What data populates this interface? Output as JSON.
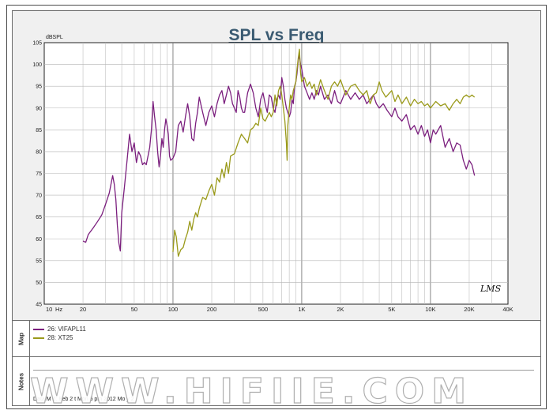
{
  "chart_data": {
    "type": "line",
    "title": "SPL vs Freq",
    "ylabel": "dBSPL",
    "xunit": "Hz",
    "xscale": "log",
    "xlim": [
      10,
      40000
    ],
    "ylim": [
      45,
      105
    ],
    "grid": true,
    "legend_position": "map panel below chart",
    "x_ticks": [
      {
        "value": 10,
        "label": "10"
      },
      {
        "value": 20,
        "label": "20"
      },
      {
        "value": 50,
        "label": "50"
      },
      {
        "value": 100,
        "label": "100"
      },
      {
        "value": 200,
        "label": "200"
      },
      {
        "value": 500,
        "label": "500"
      },
      {
        "value": 1000,
        "label": "1K"
      },
      {
        "value": 2000,
        "label": "2K"
      },
      {
        "value": 5000,
        "label": "5K"
      },
      {
        "value": 10000,
        "label": "10K"
      },
      {
        "value": 20000,
        "label": "20K"
      },
      {
        "value": 40000,
        "label": "40K"
      }
    ],
    "y_ticks": [
      45,
      50,
      55,
      60,
      65,
      70,
      75,
      80,
      85,
      90,
      95,
      100,
      105
    ],
    "series": [
      {
        "name": "26: VIFAPL11",
        "color": "#7b1f7e",
        "points": [
          [
            20,
            59.5
          ],
          [
            21,
            59.2
          ],
          [
            22,
            61
          ],
          [
            24,
            62.5
          ],
          [
            26,
            64
          ],
          [
            28,
            65.5
          ],
          [
            30,
            68
          ],
          [
            32,
            70.5
          ],
          [
            34,
            74.5
          ],
          [
            35,
            72.5
          ],
          [
            36,
            69
          ],
          [
            37,
            63
          ],
          [
            38,
            59
          ],
          [
            39,
            57.2
          ],
          [
            40,
            66
          ],
          [
            42,
            72
          ],
          [
            44,
            78
          ],
          [
            46,
            84
          ],
          [
            48,
            80
          ],
          [
            50,
            82
          ],
          [
            52,
            77.5
          ],
          [
            54,
            80
          ],
          [
            56,
            79
          ],
          [
            58,
            77
          ],
          [
            60,
            77.5
          ],
          [
            62,
            77
          ],
          [
            64,
            79
          ],
          [
            66,
            81
          ],
          [
            68,
            85
          ],
          [
            70,
            91.5
          ],
          [
            72,
            88
          ],
          [
            74,
            85
          ],
          [
            76,
            80
          ],
          [
            78,
            76.5
          ],
          [
            80,
            79
          ],
          [
            82,
            83
          ],
          [
            84,
            81
          ],
          [
            86,
            85
          ],
          [
            88,
            87.5
          ],
          [
            90,
            86
          ],
          [
            92,
            84
          ],
          [
            94,
            79
          ],
          [
            96,
            78
          ],
          [
            100,
            78.5
          ],
          [
            105,
            80
          ],
          [
            110,
            86
          ],
          [
            115,
            87
          ],
          [
            120,
            84.5
          ],
          [
            125,
            88
          ],
          [
            130,
            91
          ],
          [
            135,
            88
          ],
          [
            140,
            83
          ],
          [
            145,
            82.5
          ],
          [
            150,
            86.5
          ],
          [
            155,
            89
          ],
          [
            160,
            92.5
          ],
          [
            170,
            89
          ],
          [
            180,
            86
          ],
          [
            190,
            89
          ],
          [
            200,
            90.5
          ],
          [
            210,
            88
          ],
          [
            220,
            91
          ],
          [
            230,
            93
          ],
          [
            240,
            94
          ],
          [
            250,
            91
          ],
          [
            260,
            93
          ],
          [
            270,
            95
          ],
          [
            280,
            93.5
          ],
          [
            290,
            91
          ],
          [
            300,
            90
          ],
          [
            310,
            89
          ],
          [
            320,
            94
          ],
          [
            330,
            92.5
          ],
          [
            340,
            90
          ],
          [
            350,
            89
          ],
          [
            360,
            89
          ],
          [
            380,
            93.5
          ],
          [
            400,
            95.5
          ],
          [
            420,
            93.5
          ],
          [
            440,
            90
          ],
          [
            460,
            88
          ],
          [
            480,
            92
          ],
          [
            500,
            93.5
          ],
          [
            520,
            91
          ],
          [
            540,
            89
          ],
          [
            560,
            93
          ],
          [
            580,
            92.5
          ],
          [
            600,
            90
          ],
          [
            620,
            89
          ],
          [
            640,
            92
          ],
          [
            660,
            93
          ],
          [
            680,
            92
          ],
          [
            700,
            97
          ],
          [
            720,
            95
          ],
          [
            740,
            92
          ],
          [
            760,
            90
          ],
          [
            780,
            89
          ],
          [
            800,
            88
          ],
          [
            820,
            89
          ],
          [
            840,
            92
          ],
          [
            860,
            91
          ],
          [
            880,
            95
          ],
          [
            900,
            96
          ],
          [
            920,
            98
          ],
          [
            940,
            101
          ],
          [
            960,
            102
          ],
          [
            980,
            100
          ],
          [
            1000,
            99
          ],
          [
            1050,
            95
          ],
          [
            1100,
            93.5
          ],
          [
            1150,
            92
          ],
          [
            1200,
            93.5
          ],
          [
            1250,
            92
          ],
          [
            1300,
            94
          ],
          [
            1350,
            93
          ],
          [
            1400,
            95
          ],
          [
            1500,
            92
          ],
          [
            1600,
            93
          ],
          [
            1700,
            91
          ],
          [
            1800,
            94
          ],
          [
            1900,
            91.5
          ],
          [
            2000,
            91
          ],
          [
            2200,
            94
          ],
          [
            2400,
            92
          ],
          [
            2600,
            93.5
          ],
          [
            2800,
            92
          ],
          [
            3000,
            93
          ],
          [
            3200,
            91
          ],
          [
            3400,
            92
          ],
          [
            3600,
            93
          ],
          [
            3800,
            91
          ],
          [
            4000,
            90
          ],
          [
            4300,
            91
          ],
          [
            4600,
            89.5
          ],
          [
            5000,
            88
          ],
          [
            5300,
            90
          ],
          [
            5600,
            88
          ],
          [
            6000,
            87
          ],
          [
            6500,
            88.5
          ],
          [
            7000,
            85
          ],
          [
            7500,
            86
          ],
          [
            8000,
            84
          ],
          [
            8500,
            86
          ],
          [
            9000,
            83.5
          ],
          [
            9500,
            85
          ],
          [
            10000,
            82
          ],
          [
            10500,
            85
          ],
          [
            11000,
            84
          ],
          [
            12000,
            86
          ],
          [
            13000,
            81
          ],
          [
            14000,
            83
          ],
          [
            15000,
            80
          ],
          [
            16000,
            82
          ],
          [
            17000,
            81.5
          ],
          [
            18000,
            78
          ],
          [
            19000,
            76
          ],
          [
            20000,
            78
          ],
          [
            21000,
            77
          ],
          [
            22000,
            74.5
          ]
        ]
      },
      {
        "name": "28: XT25",
        "color": "#9a9a1a",
        "points": [
          [
            100,
            57
          ],
          [
            103,
            62
          ],
          [
            106,
            60.5
          ],
          [
            110,
            56
          ],
          [
            115,
            57.5
          ],
          [
            120,
            58
          ],
          [
            125,
            60
          ],
          [
            130,
            61.5
          ],
          [
            135,
            64
          ],
          [
            140,
            62
          ],
          [
            145,
            64.5
          ],
          [
            150,
            66
          ],
          [
            155,
            65
          ],
          [
            160,
            67
          ],
          [
            170,
            69.5
          ],
          [
            180,
            69
          ],
          [
            190,
            71
          ],
          [
            200,
            72.5
          ],
          [
            210,
            70
          ],
          [
            220,
            74
          ],
          [
            230,
            73
          ],
          [
            240,
            76
          ],
          [
            250,
            74
          ],
          [
            260,
            77.5
          ],
          [
            270,
            75
          ],
          [
            280,
            79
          ],
          [
            300,
            79.5
          ],
          [
            320,
            82
          ],
          [
            340,
            84
          ],
          [
            360,
            83
          ],
          [
            380,
            82
          ],
          [
            400,
            85
          ],
          [
            420,
            85.5
          ],
          [
            440,
            86.5
          ],
          [
            460,
            86
          ],
          [
            480,
            90
          ],
          [
            500,
            87.5
          ],
          [
            520,
            87
          ],
          [
            540,
            88
          ],
          [
            560,
            89
          ],
          [
            580,
            88
          ],
          [
            600,
            89
          ],
          [
            620,
            93
          ],
          [
            640,
            90.5
          ],
          [
            660,
            94
          ],
          [
            680,
            95
          ],
          [
            700,
            93
          ],
          [
            720,
            90
          ],
          [
            740,
            87
          ],
          [
            760,
            82
          ],
          [
            770,
            78
          ],
          [
            780,
            86
          ],
          [
            800,
            90
          ],
          [
            820,
            93
          ],
          [
            840,
            92
          ],
          [
            860,
            94
          ],
          [
            880,
            95
          ],
          [
            900,
            96
          ],
          [
            920,
            99
          ],
          [
            940,
            101.5
          ],
          [
            960,
            103.5
          ],
          [
            980,
            98
          ],
          [
            1000,
            96
          ],
          [
            1050,
            97
          ],
          [
            1100,
            95
          ],
          [
            1150,
            96
          ],
          [
            1200,
            94.5
          ],
          [
            1250,
            95.5
          ],
          [
            1300,
            93
          ],
          [
            1400,
            96.5
          ],
          [
            1500,
            94
          ],
          [
            1600,
            92
          ],
          [
            1700,
            95
          ],
          [
            1800,
            96
          ],
          [
            1900,
            95
          ],
          [
            2000,
            96.5
          ],
          [
            2200,
            93
          ],
          [
            2400,
            95
          ],
          [
            2600,
            95.5
          ],
          [
            2800,
            94
          ],
          [
            3000,
            93
          ],
          [
            3200,
            94
          ],
          [
            3400,
            91
          ],
          [
            3600,
            93
          ],
          [
            3800,
            93.5
          ],
          [
            4000,
            96
          ],
          [
            4200,
            94
          ],
          [
            4500,
            92.5
          ],
          [
            5000,
            94
          ],
          [
            5300,
            91.5
          ],
          [
            5600,
            93
          ],
          [
            6000,
            91
          ],
          [
            6500,
            92.5
          ],
          [
            7000,
            90.5
          ],
          [
            7500,
            92
          ],
          [
            8000,
            91
          ],
          [
            8500,
            91.5
          ],
          [
            9000,
            90.5
          ],
          [
            9500,
            91
          ],
          [
            10000,
            90
          ],
          [
            11000,
            91.5
          ],
          [
            12000,
            90.5
          ],
          [
            13000,
            91
          ],
          [
            14000,
            89.5
          ],
          [
            15000,
            91
          ],
          [
            16000,
            92
          ],
          [
            17000,
            91
          ],
          [
            18000,
            92.5
          ],
          [
            19000,
            93
          ],
          [
            20000,
            92.5
          ],
          [
            21000,
            93
          ],
          [
            22000,
            92.5
          ]
        ]
      }
    ]
  },
  "map": {
    "label": "Map",
    "legend": [
      {
        "label": "26: VIFAPL11",
        "color": "#7b1f7e"
      },
      {
        "label": "28: XT25",
        "color": "#9a9a1a"
      }
    ]
  },
  "notes": {
    "label": "Notes",
    "text": "Data M     d: Feb 2     t Mon 5     pm                                                      2012  Mo     y 2"
  },
  "logo": "LMS",
  "watermark": "WWW.HIFIIE.COM"
}
